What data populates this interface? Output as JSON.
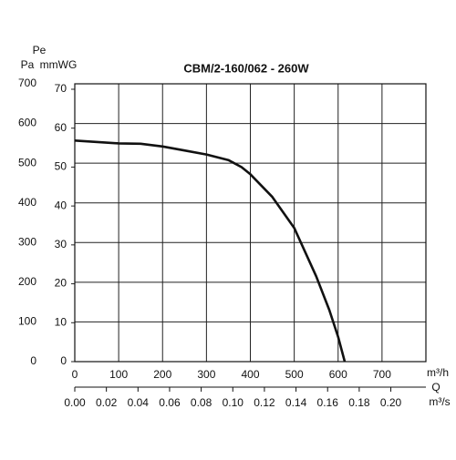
{
  "chart_data": {
    "type": "line",
    "title": "CBM/2-160/062 - 260W",
    "y_label": "Pa",
    "y2_label": "mmWG",
    "pe_label": "Pe",
    "x_label": "m³/h",
    "x2_label": "Q",
    "x2_unit": "m³/s",
    "xlim": [
      0,
      800
    ],
    "xticks": [
      0,
      100,
      200,
      300,
      400,
      500,
      600,
      700
    ],
    "ylim": [
      0,
      700
    ],
    "yticks": [
      0,
      100,
      200,
      300,
      400,
      500,
      600,
      700
    ],
    "y2lim": [
      0,
      71.4
    ],
    "y2ticks": [
      0,
      10,
      20,
      30,
      40,
      50,
      60,
      70
    ],
    "x2lim": [
      0,
      0.2222
    ],
    "x2ticks": [
      {
        "value": 0,
        "label": "0.00"
      },
      0.02,
      0.04,
      0.06,
      0.08,
      {
        "value": 0.1,
        "label": "0.10"
      },
      0.12,
      0.14,
      0.16,
      0.18,
      {
        "value": 0.2,
        "label": "0.20"
      }
    ],
    "grid": true,
    "x": [
      0,
      100,
      150,
      200,
      250,
      300,
      350,
      380,
      400,
      450,
      500,
      550,
      580,
      600,
      615
    ],
    "series": [
      {
        "color": "#111111",
        "values": [
          557,
          550,
          549,
          542,
          532,
          522,
          508,
          490,
          472,
          415,
          337,
          215,
          130,
          62,
          0
        ]
      }
    ]
  }
}
